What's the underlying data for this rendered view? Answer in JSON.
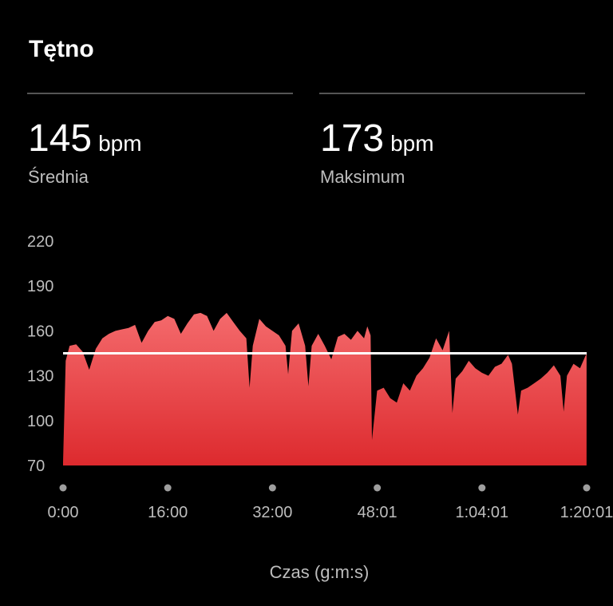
{
  "title": "Tętno",
  "stats": [
    {
      "value": 145,
      "unit": "bpm",
      "label": "Średnia"
    },
    {
      "value": 173,
      "unit": "bpm",
      "label": "Maksimum"
    }
  ],
  "chart_data": {
    "type": "area",
    "x_label": "Czas (g:m:s)",
    "color": "#e53a3d",
    "reference_line_color": "#ffffff",
    "x": [
      0,
      0.4,
      1,
      2,
      3,
      4,
      5,
      6,
      7,
      8,
      9,
      10,
      11,
      12,
      13,
      14,
      15,
      16,
      17,
      18,
      19,
      20,
      21,
      22,
      23,
      24,
      25,
      26,
      27,
      28,
      28.5,
      29,
      30,
      31,
      32,
      33,
      34,
      34.4,
      35,
      36,
      37,
      37.5,
      38,
      39,
      40,
      41,
      42,
      43,
      44,
      45,
      46,
      46.5,
      47,
      47.2,
      48,
      49,
      50,
      51,
      52,
      53,
      54,
      55,
      56,
      57,
      58,
      59,
      59.5,
      60,
      61,
      62,
      63,
      64,
      65,
      66,
      67,
      68,
      68.6,
      69.5,
      70,
      71,
      72,
      73,
      74,
      75,
      76,
      76.5,
      77,
      78,
      79,
      80
    ],
    "values": [
      72,
      140,
      150,
      151,
      146,
      134,
      148,
      155,
      158,
      160,
      161,
      162,
      164,
      152,
      160,
      166,
      167,
      170,
      168,
      158,
      165,
      171,
      172,
      170,
      160,
      168,
      172,
      166,
      160,
      155,
      122,
      150,
      168,
      163,
      160,
      157,
      150,
      131,
      160,
      165,
      150,
      123,
      150,
      158,
      150,
      141,
      156,
      158,
      154,
      160,
      155,
      163,
      157,
      87,
      120,
      122,
      115,
      112,
      125,
      120,
      130,
      135,
      142,
      155,
      147,
      160,
      105,
      128,
      133,
      140,
      135,
      132,
      130,
      136,
      138,
      144,
      138,
      104,
      120,
      122,
      125,
      128,
      132,
      137,
      130,
      106,
      130,
      138,
      135,
      145
    ],
    "xlim": [
      0,
      80.017
    ],
    "xticks": [
      {
        "value": 0,
        "label": "0:00"
      },
      {
        "value": 16,
        "label": "16:00"
      },
      {
        "value": 32,
        "label": "32:00"
      },
      {
        "value": 48.017,
        "label": "48:01"
      },
      {
        "value": 64.017,
        "label": "1:04:01"
      },
      {
        "value": 80.017,
        "label": "1:20:01"
      }
    ],
    "ylim": [
      70,
      220
    ],
    "yticks": [
      70,
      100,
      130,
      160,
      190,
      220
    ]
  }
}
